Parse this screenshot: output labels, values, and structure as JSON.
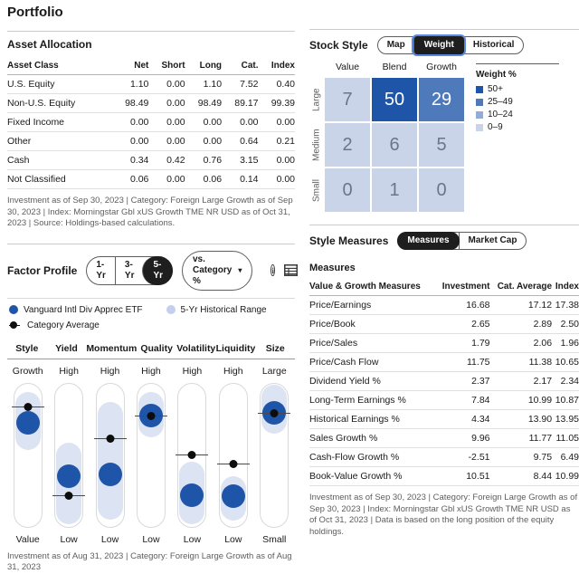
{
  "page": {
    "title": "Portfolio"
  },
  "asset_allocation": {
    "title": "Asset Allocation",
    "columns": [
      "Asset Class",
      "Net",
      "Short",
      "Long",
      "Cat.",
      "Index"
    ],
    "rows": [
      {
        "label": "U.S. Equity",
        "values": [
          "1.10",
          "0.00",
          "1.10",
          "7.52",
          "0.40"
        ]
      },
      {
        "label": "Non-U.S. Equity",
        "values": [
          "98.49",
          "0.00",
          "98.49",
          "89.17",
          "99.39"
        ]
      },
      {
        "label": "Fixed Income",
        "values": [
          "0.00",
          "0.00",
          "0.00",
          "0.00",
          "0.00"
        ]
      },
      {
        "label": "Other",
        "values": [
          "0.00",
          "0.00",
          "0.00",
          "0.64",
          "0.21"
        ]
      },
      {
        "label": "Cash",
        "values": [
          "0.34",
          "0.42",
          "0.76",
          "3.15",
          "0.00"
        ]
      },
      {
        "label": "Not Classified",
        "values": [
          "0.06",
          "0.00",
          "0.06",
          "0.14",
          "0.00"
        ]
      }
    ],
    "footnote": "Investment as of Sep 30, 2023 | Category: Foreign Large Growth as of Sep 30, 2023 | Index: Morningstar Gbl xUS Growth TME NR USD as of Oct 31, 2023 | Source: Holdings-based calculations."
  },
  "stock_style": {
    "title": "Stock Style",
    "toggle": {
      "options": [
        "Map",
        "Weight",
        "Historical"
      ],
      "selected": "Weight",
      "ring": true
    },
    "grid": {
      "col_headers": [
        "Value",
        "Blend",
        "Growth"
      ],
      "row_headers": [
        "Large",
        "Medium",
        "Small"
      ],
      "values": [
        [
          7,
          50,
          29
        ],
        [
          2,
          6,
          5
        ],
        [
          0,
          1,
          0
        ]
      ]
    },
    "legend": {
      "title": "Weight %",
      "items": [
        {
          "label": "50+",
          "color": "#1f55a8"
        },
        {
          "label": "25–49",
          "color": "#4e7abc"
        },
        {
          "label": "10–24",
          "color": "#93abd5"
        },
        {
          "label": "0–9",
          "color": "#c9d4e9"
        }
      ]
    }
  },
  "factor_profile": {
    "title": "Factor Profile",
    "period_toggle": {
      "options": [
        "1-Yr",
        "3-Yr",
        "5-Yr"
      ],
      "selected": "5-Yr",
      "ring": false
    },
    "dropdown_label": "vs. Category %",
    "icons": {
      "info": "info-icon",
      "table": "table-view-icon"
    },
    "legend": {
      "etf": "Vanguard Intl Div Apprec ETF",
      "range": "5-Yr Historical Range",
      "category": "Category Average"
    },
    "factors": [
      {
        "name": "Style",
        "top_label": "Growth",
        "bottom_label": "Value",
        "range_pct": [
          6,
          46
        ],
        "etf_pct": 27,
        "cat_pct": 16
      },
      {
        "name": "Yield",
        "top_label": "High",
        "bottom_label": "Low",
        "range_pct": [
          41,
          97
        ],
        "etf_pct": 64,
        "cat_pct": 77
      },
      {
        "name": "Momentum",
        "top_label": "High",
        "bottom_label": "Low",
        "range_pct": [
          13,
          94
        ],
        "etf_pct": 63,
        "cat_pct": 38
      },
      {
        "name": "Quality",
        "top_label": "High",
        "bottom_label": "Low",
        "range_pct": [
          6,
          37
        ],
        "etf_pct": 22,
        "cat_pct": 22
      },
      {
        "name": "Volatility",
        "top_label": "High",
        "bottom_label": "Low",
        "range_pct": [
          54,
          97
        ],
        "etf_pct": 77,
        "cat_pct": 49
      },
      {
        "name": "Liquidity",
        "top_label": "High",
        "bottom_label": "Low",
        "range_pct": [
          64,
          95
        ],
        "etf_pct": 78,
        "cat_pct": 55
      },
      {
        "name": "Size",
        "top_label": "Large",
        "bottom_label": "Small",
        "range_pct": [
          1,
          35
        ],
        "etf_pct": 20,
        "cat_pct": 20
      }
    ],
    "footnote": "Investment as of Aug 31, 2023 | Category: Foreign Large Growth as of Aug 31, 2023"
  },
  "style_measures": {
    "title": "Style Measures",
    "toggle": {
      "options": [
        "Measures",
        "Market Cap"
      ],
      "selected": "Measures",
      "ring": false
    },
    "subtitle": "Measures",
    "columns": [
      "Value & Growth Measures",
      "Investment",
      "Cat. Average",
      "Index"
    ],
    "rows": [
      {
        "label": "Price/Earnings",
        "values": [
          "16.68",
          "17.12",
          "17.38"
        ]
      },
      {
        "label": "Price/Book",
        "values": [
          "2.65",
          "2.89",
          "2.50"
        ]
      },
      {
        "label": "Price/Sales",
        "values": [
          "1.79",
          "2.06",
          "1.96"
        ]
      },
      {
        "label": "Price/Cash Flow",
        "values": [
          "11.75",
          "11.38",
          "10.65"
        ]
      },
      {
        "label": "Dividend Yield %",
        "values": [
          "2.37",
          "2.17",
          "2.34"
        ]
      },
      {
        "label": "Long-Term Earnings %",
        "values": [
          "7.84",
          "10.99",
          "10.87"
        ]
      },
      {
        "label": "Historical Earnings %",
        "values": [
          "4.34",
          "13.90",
          "13.95"
        ]
      },
      {
        "label": "Sales Growth %",
        "values": [
          "9.96",
          "11.77",
          "11.05"
        ]
      },
      {
        "label": "Cash-Flow Growth %",
        "values": [
          "-2.51",
          "9.75",
          "6.49"
        ]
      },
      {
        "label": "Book-Value Growth %",
        "values": [
          "10.51",
          "8.44",
          "10.99"
        ]
      }
    ],
    "footnote": "Investment as of Sep 30, 2023 | Category: Foreign Large Growth as of Sep 30, 2023 | Index: Morningstar Gbl xUS Growth TME NR USD as of Oct 31, 2023 | Data is based on the long position of the equity holdings."
  },
  "chart_data": [
    {
      "type": "heatmap",
      "title": "Stock Style Weight %",
      "x_categories": [
        "Value",
        "Blend",
        "Growth"
      ],
      "y_categories": [
        "Large",
        "Medium",
        "Small"
      ],
      "values": [
        [
          7,
          50,
          29
        ],
        [
          2,
          6,
          5
        ],
        [
          0,
          1,
          0
        ]
      ],
      "legend_buckets": [
        "50+",
        "25-49",
        "10-24",
        "0-9"
      ],
      "legend_position": "right"
    },
    {
      "type": "scatter",
      "title": "Factor Profile (5-Yr, vs. Category %)",
      "categories": [
        "Style",
        "Yield",
        "Momentum",
        "Quality",
        "Volatility",
        "Liquidity",
        "Size"
      ],
      "axis_top_labels": [
        "Growth",
        "High",
        "High",
        "High",
        "High",
        "High",
        "Large"
      ],
      "axis_bottom_labels": [
        "Value",
        "Low",
        "Low",
        "Low",
        "Low",
        "Low",
        "Small"
      ],
      "series": [
        {
          "name": "Vanguard Intl Div Apprec ETF (position % from top)",
          "values": [
            27,
            64,
            63,
            22,
            77,
            78,
            20
          ]
        },
        {
          "name": "Category Average (position % from top)",
          "values": [
            16,
            77,
            38,
            22,
            49,
            55,
            20
          ]
        },
        {
          "name": "5-Yr Historical Range top (% from top)",
          "values": [
            6,
            41,
            13,
            6,
            54,
            64,
            1
          ]
        },
        {
          "name": "5-Yr Historical Range bottom (% from top)",
          "values": [
            46,
            97,
            94,
            37,
            97,
            95,
            35
          ]
        }
      ]
    }
  ]
}
